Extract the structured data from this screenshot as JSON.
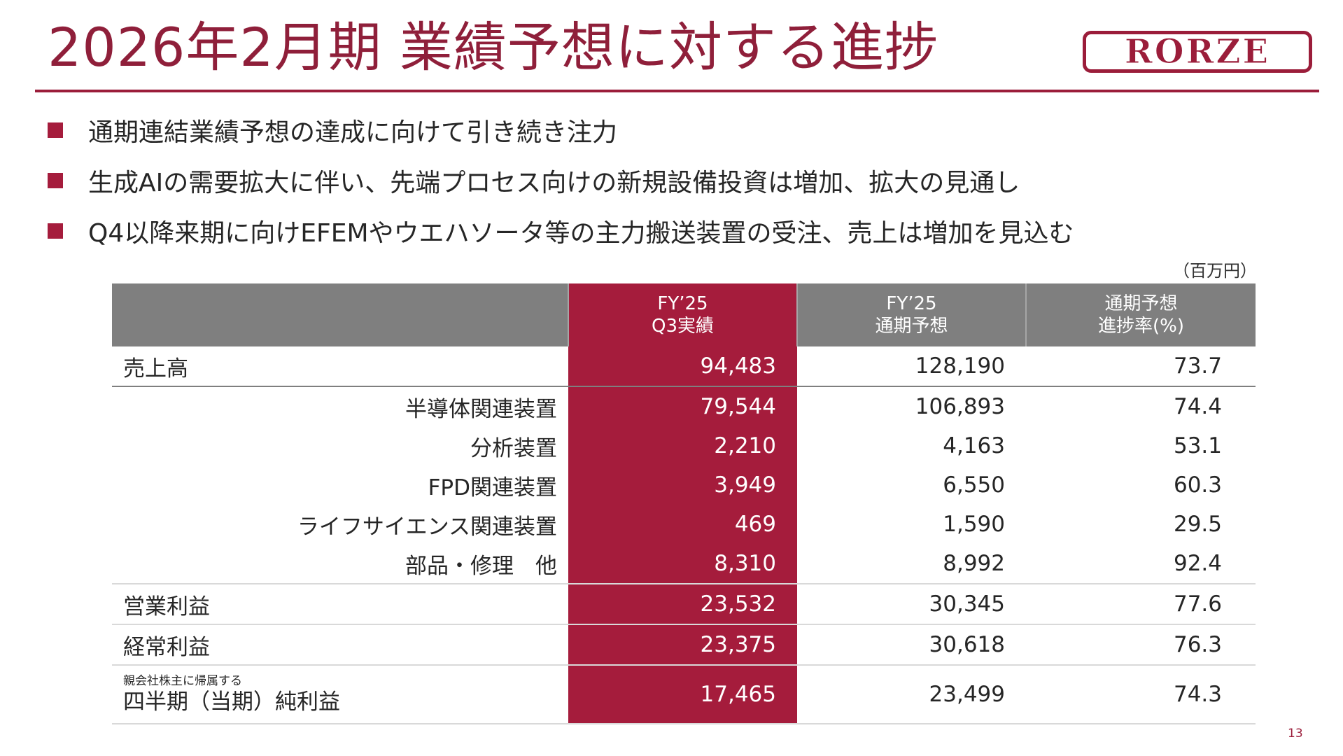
{
  "title": "2026年2月期 業績予想に対する進捗",
  "logo_text": "RORZE",
  "bullets": [
    "通期連結業績予想の達成に向けて引き続き注力",
    "生成AIの需要拡大に伴い、先端プロセス向けの新規設備投資は増加、拡大の見通し",
    "Q4以降来期に向けEFEMやウエハソータ等の主力搬送装置の受注、売上は増加を見込む"
  ],
  "unit": "（百万円）",
  "table": {
    "headers": [
      {
        "line1": "",
        "line2": ""
      },
      {
        "line1": "FY’25",
        "line2": "Q3実績"
      },
      {
        "line1": "FY’25",
        "line2": "通期予想"
      },
      {
        "line1": "通期予想",
        "line2": "進捗率(%)"
      }
    ],
    "rows": [
      {
        "label": "売上高",
        "q3": "94,483",
        "forecast": "128,190",
        "progress": "73.7"
      },
      {
        "label": "半導体関連装置",
        "q3": "79,544",
        "forecast": "106,893",
        "progress": "74.4"
      },
      {
        "label": "分析装置",
        "q3": "2,210",
        "forecast": "4,163",
        "progress": "53.1"
      },
      {
        "label": "FPD関連装置",
        "q3": "3,949",
        "forecast": "6,550",
        "progress": "60.3"
      },
      {
        "label": "ライフサイエンス関連装置",
        "q3": "469",
        "forecast": "1,590",
        "progress": "29.5"
      },
      {
        "label": "部品・修理　他",
        "q3": "8,310",
        "forecast": "8,992",
        "progress": "92.4"
      },
      {
        "label": "営業利益",
        "q3": "23,532",
        "forecast": "30,345",
        "progress": "77.6"
      },
      {
        "label": "経常利益",
        "q3": "23,375",
        "forecast": "30,618",
        "progress": "76.3"
      },
      {
        "label_small": "親会社株主に帰属する",
        "label": "四半期（当期）純利益",
        "q3": "17,465",
        "forecast": "23,499",
        "progress": "74.3"
      }
    ]
  },
  "page_number": "13",
  "colors": {
    "accent": "#a51c3c",
    "header_gray": "#7f7f7f",
    "text": "#262626"
  }
}
